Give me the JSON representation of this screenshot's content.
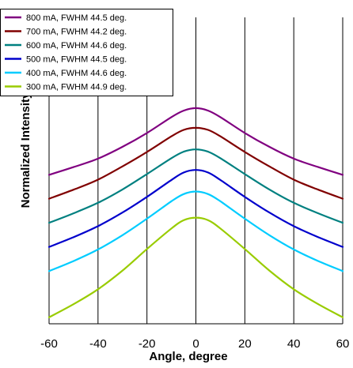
{
  "chart_data": {
    "type": "line",
    "xlabel": "Angle, degree",
    "ylabel": "Normalized Intensity",
    "xlim": [
      -60,
      60
    ],
    "x_ticks": [
      "-60",
      "-40",
      "-20",
      "0",
      "20",
      "40",
      "60"
    ],
    "grid": "vertical",
    "legend_position": "top-left",
    "x": [
      -60,
      -50,
      -40,
      -30,
      -20,
      -10,
      -5,
      0,
      5,
      10,
      20,
      30,
      40,
      50,
      60
    ],
    "series": [
      {
        "name": "800 mA, FWHM 44.5 deg.",
        "color": "#800080",
        "values": [
          0.565,
          0.595,
          0.628,
          0.674,
          0.728,
          0.79,
          0.815,
          0.825,
          0.815,
          0.79,
          0.728,
          0.674,
          0.628,
          0.595,
          0.565
        ]
      },
      {
        "name": "700 mA, FWHM 44.2 deg.",
        "color": "#800000",
        "values": [
          0.472,
          0.507,
          0.546,
          0.598,
          0.654,
          0.715,
          0.74,
          0.748,
          0.74,
          0.715,
          0.654,
          0.598,
          0.546,
          0.507,
          0.472
        ]
      },
      {
        "name": "600 mA, FWHM 44.6 deg.",
        "color": "#008080",
        "values": [
          0.378,
          0.415,
          0.456,
          0.508,
          0.568,
          0.63,
          0.655,
          0.664,
          0.655,
          0.63,
          0.568,
          0.508,
          0.456,
          0.415,
          0.378
        ]
      },
      {
        "name": "500 mA, FWHM 44.5 deg.",
        "color": "#0000cc",
        "values": [
          0.284,
          0.322,
          0.365,
          0.418,
          0.479,
          0.545,
          0.574,
          0.584,
          0.574,
          0.545,
          0.479,
          0.418,
          0.365,
          0.322,
          0.284
        ]
      },
      {
        "name": "400 mA, FWHM 44.6 deg.",
        "color": "#00ccff",
        "values": [
          0.19,
          0.229,
          0.274,
          0.33,
          0.394,
          0.462,
          0.49,
          0.5,
          0.49,
          0.462,
          0.394,
          0.33,
          0.274,
          0.229,
          0.19
        ]
      },
      {
        "name": "300 mA, FWHM 44.9 deg.",
        "color": "#99cc00",
        "values": [
          0.01,
          0.061,
          0.119,
          0.192,
          0.276,
          0.356,
          0.388,
          0.398,
          0.388,
          0.356,
          0.276,
          0.192,
          0.119,
          0.061,
          0.01
        ]
      }
    ]
  }
}
